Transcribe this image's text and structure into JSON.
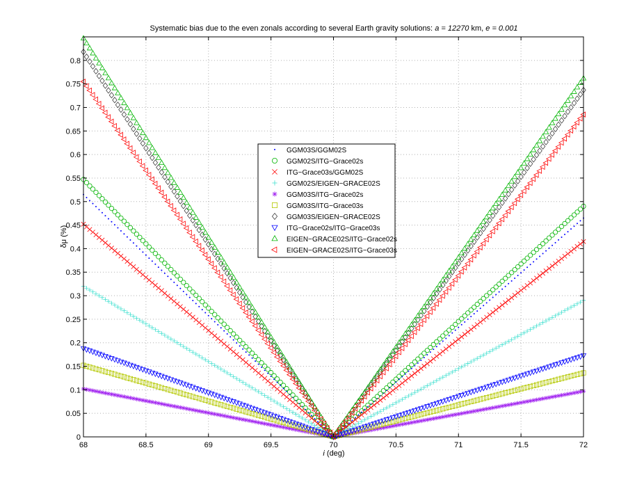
{
  "chart_data": {
    "type": "scatter",
    "title_prefix": "Systematic bias due to the even zonals according to several Earth gravity solutions: ",
    "title_a": "a = 12270",
    "title_a_unit": " km,  ",
    "title_e": "e = 0.001",
    "xlabel_symbol": "i",
    "xlabel_unit": " (deg)",
    "ylabel": "δμ  (%)",
    "xlim": [
      68,
      72
    ],
    "ylim": [
      0,
      0.85
    ],
    "xticks": [
      {
        "v": 68,
        "label": "68"
      },
      {
        "v": 68.5,
        "label": "68.5"
      },
      {
        "v": 69,
        "label": "69"
      },
      {
        "v": 69.5,
        "label": "69.5"
      },
      {
        "v": 70,
        "label": "70"
      },
      {
        "v": 70.5,
        "label": "70.5"
      },
      {
        "v": 71,
        "label": "71"
      },
      {
        "v": 71.5,
        "label": "71.5"
      },
      {
        "v": 72,
        "label": "72"
      }
    ],
    "yticks": [
      {
        "v": 0,
        "label": "0"
      },
      {
        "v": 0.05,
        "label": "0.05"
      },
      {
        "v": 0.1,
        "label": "0.1"
      },
      {
        "v": 0.15,
        "label": "0.15"
      },
      {
        "v": 0.2,
        "label": "0.2"
      },
      {
        "v": 0.25,
        "label": "0.25"
      },
      {
        "v": 0.3,
        "label": "0.3"
      },
      {
        "v": 0.35,
        "label": "0.35"
      },
      {
        "v": 0.4,
        "label": "0.4"
      },
      {
        "v": 0.45,
        "label": "0.45"
      },
      {
        "v": 0.5,
        "label": "0.5"
      },
      {
        "v": 0.55,
        "label": "0.55"
      },
      {
        "v": 0.6,
        "label": "0.6"
      },
      {
        "v": 0.65,
        "label": "0.65"
      },
      {
        "v": 0.7,
        "label": "0.7"
      },
      {
        "v": 0.75,
        "label": "0.75"
      },
      {
        "v": 0.8,
        "label": "0.8"
      }
    ],
    "grid": true,
    "legend_position": "center",
    "x_vertex": 70,
    "step_deg": 0.025,
    "series": [
      {
        "name": "GGM03S/GGM02S",
        "marker": "point",
        "color": "#0000ff",
        "y_left": 0.515,
        "y_right": 0.465
      },
      {
        "name": "GGM02S/ITG−Grace02s",
        "marker": "circle",
        "color": "#00b400",
        "y_left": 0.547,
        "y_right": 0.49
      },
      {
        "name": " ITG−Grace03s/GGM02S",
        "marker": "x",
        "color": "#ff0000",
        "y_left": 0.452,
        "y_right": 0.415
      },
      {
        "name": " GGM02S/EIGEN−GRACE02S",
        "marker": "plus",
        "color": "#40e0d0",
        "y_left": 0.32,
        "y_right": 0.29
      },
      {
        "name": "GGM03S/ITG−Grace02s",
        "marker": "star",
        "color": "#a020f0",
        "y_left": 0.102,
        "y_right": 0.097
      },
      {
        "name": "GGM03S/ITG−Grace03s",
        "marker": "square",
        "color": "#b4c800",
        "y_left": 0.152,
        "y_right": 0.136
      },
      {
        "name": "GGM03S/EIGEN−GRACE02S",
        "marker": "diamond",
        "color": "#404040",
        "y_left": 0.818,
        "y_right": 0.737
      },
      {
        "name": "ITG−Grace02s/ITG−Grace03s",
        "marker": "triangle-down",
        "color": "#0000ff",
        "y_left": 0.188,
        "y_right": 0.173
      },
      {
        "name": "EIGEN−GRACE02S/ITG−Grace02s",
        "marker": "triangle-up",
        "color": "#00b400",
        "y_left": 0.847,
        "y_right": 0.762
      },
      {
        "name": "EIGEN−GRACE02S/ITG−Grace03s",
        "marker": "triangle-left",
        "color": "#ff0000",
        "y_left": 0.755,
        "y_right": 0.685
      }
    ]
  }
}
